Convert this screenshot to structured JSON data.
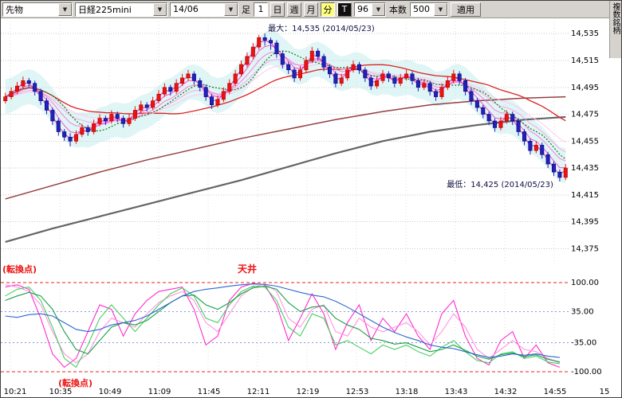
{
  "toolbar": {
    "instrument_value": "先物",
    "symbol_value": "日経225mini",
    "contract_value": "14/06",
    "bar_label": "足",
    "interval_value": "1",
    "period_buttons": [
      {
        "label": "日"
      },
      {
        "label": "週"
      },
      {
        "label": "月"
      },
      {
        "label": "分"
      }
    ],
    "t_button": "T",
    "count_value": "96",
    "bars_label": "本数",
    "bars_value": "500",
    "apply_label": "適用",
    "multi_symbol_label": "複数銘柄"
  },
  "annotations": {
    "max_label": "最大：14,535 (2014/05/23)",
    "min_label": "最低：14,425 (2014/05/23)",
    "turn_top": "(転換点)",
    "ceiling": "天井",
    "turn_bottom": "(転換点)"
  },
  "chart_data": {
    "type": "candlestick",
    "title": "日経225mini 14/06 分足",
    "x_ticks": [
      "10:21",
      "10:35",
      "10:49",
      "11:09",
      "11:45",
      "12:11",
      "12:19",
      "12:53",
      "13:18",
      "13:43",
      "14:32",
      "14:55",
      "15"
    ],
    "colors": {
      "up": "#ee1111",
      "up_border": "#aa0000",
      "down": "#2222bb",
      "down_border": "#000077",
      "ma_short": "#0e7a0e",
      "ma_mid": "#dd2222",
      "ma_long": "#4a4a4a",
      "ma_long2": "#8a2a2a",
      "ribbon": [
        "#ffc2ef",
        "#ff9ae6",
        "#ff6fdb",
        "#ff3fce",
        "#e520b8"
      ],
      "band": "#daf4f4",
      "grid": "#c9c9c9",
      "osc_limit": "#ee2222",
      "osc_inner": "#8899dd",
      "annotation": "#101042"
    },
    "price": {
      "ymin": 14364,
      "ymax": 14544,
      "yticks": [
        {
          "v": 14535,
          "label": "14,535"
        },
        {
          "v": 14515,
          "label": "14,515"
        },
        {
          "v": 14495,
          "label": "14,495"
        },
        {
          "v": 14475,
          "label": "14,475"
        },
        {
          "v": 14455,
          "label": "14,455"
        },
        {
          "v": 14435,
          "label": "14,435"
        },
        {
          "v": 14415,
          "label": "14,415"
        },
        {
          "v": 14395,
          "label": "14,395"
        },
        {
          "v": 14375,
          "label": "14,375"
        }
      ],
      "max_point": {
        "value": 14535,
        "date": "2014/05/23",
        "bar": 44
      },
      "min_point": {
        "value": 14425,
        "date": "2014/05/23",
        "bar": 94
      },
      "ma_long": {
        "indices": [
          0,
          8,
          16,
          24,
          32,
          40,
          48,
          56,
          64,
          72,
          80,
          88,
          95
        ],
        "values": [
          14380,
          14390,
          14399,
          14408,
          14417,
          14426,
          14436,
          14446,
          14455,
          14462,
          14467,
          14471,
          14473
        ]
      },
      "ma_long2": {
        "indices": [
          0,
          8,
          16,
          24,
          32,
          40,
          48,
          56,
          64,
          72,
          80,
          88,
          95
        ],
        "values": [
          14412,
          14422,
          14432,
          14441,
          14449,
          14457,
          14464,
          14471,
          14477,
          14482,
          14485,
          14487,
          14488
        ]
      },
      "candles": [
        [
          14485,
          14491,
          14483,
          14488
        ],
        [
          14488,
          14495,
          14486,
          14492
        ],
        [
          14492,
          14499,
          14490,
          14496
        ],
        [
          14496,
          14503,
          14494,
          14500
        ],
        [
          14500,
          14502,
          14495,
          14498
        ],
        [
          14498,
          14500,
          14489,
          14492
        ],
        [
          14492,
          14494,
          14482,
          14485
        ],
        [
          14485,
          14487,
          14475,
          14478
        ],
        [
          14478,
          14480,
          14467,
          14470
        ],
        [
          14470,
          14472,
          14459,
          14462
        ],
        [
          14462,
          14464,
          14455,
          14458
        ],
        [
          14458,
          14461,
          14451,
          14455
        ],
        [
          14455,
          14463,
          14453,
          14460
        ],
        [
          14460,
          14468,
          14458,
          14465
        ],
        [
          14465,
          14467,
          14459,
          14462
        ],
        [
          14462,
          14471,
          14460,
          14468
        ],
        [
          14468,
          14475,
          14466,
          14472
        ],
        [
          14472,
          14474,
          14467,
          14470
        ],
        [
          14470,
          14478,
          14468,
          14475
        ],
        [
          14475,
          14477,
          14469,
          14472
        ],
        [
          14472,
          14474,
          14465,
          14468
        ],
        [
          14468,
          14475,
          14466,
          14472
        ],
        [
          14472,
          14481,
          14470,
          14478
        ],
        [
          14478,
          14485,
          14476,
          14482
        ],
        [
          14482,
          14484,
          14477,
          14480
        ],
        [
          14480,
          14488,
          14478,
          14485
        ],
        [
          14485,
          14493,
          14483,
          14490
        ],
        [
          14490,
          14498,
          14488,
          14495
        ],
        [
          14495,
          14497,
          14489,
          14492
        ],
        [
          14492,
          14501,
          14490,
          14498
        ],
        [
          14498,
          14505,
          14496,
          14502
        ],
        [
          14502,
          14508,
          14500,
          14505
        ],
        [
          14505,
          14507,
          14497,
          14500
        ],
        [
          14500,
          14502,
          14492,
          14495
        ],
        [
          14495,
          14497,
          14485,
          14488
        ],
        [
          14488,
          14490,
          14479,
          14482
        ],
        [
          14482,
          14489,
          14480,
          14486
        ],
        [
          14486,
          14495,
          14484,
          14492
        ],
        [
          14492,
          14501,
          14490,
          14498
        ],
        [
          14498,
          14508,
          14496,
          14505
        ],
        [
          14505,
          14515,
          14503,
          14512
        ],
        [
          14512,
          14521,
          14510,
          14518
        ],
        [
          14518,
          14528,
          14516,
          14525
        ],
        [
          14525,
          14534,
          14523,
          14532
        ],
        [
          14532,
          14535,
          14526,
          14530
        ],
        [
          14530,
          14532,
          14523,
          14528
        ],
        [
          14528,
          14530,
          14517,
          14520
        ],
        [
          14520,
          14522,
          14509,
          14512
        ],
        [
          14512,
          14514,
          14505,
          14508
        ],
        [
          14508,
          14510,
          14499,
          14502
        ],
        [
          14502,
          14511,
          14500,
          14508
        ],
        [
          14508,
          14518,
          14506,
          14515
        ],
        [
          14515,
          14525,
          14513,
          14522
        ],
        [
          14522,
          14524,
          14515,
          14518
        ],
        [
          14518,
          14520,
          14507,
          14510
        ],
        [
          14510,
          14512,
          14502,
          14505
        ],
        [
          14505,
          14507,
          14495,
          14498
        ],
        [
          14498,
          14505,
          14496,
          14502
        ],
        [
          14502,
          14511,
          14500,
          14508
        ],
        [
          14508,
          14515,
          14506,
          14512
        ],
        [
          14512,
          14514,
          14505,
          14508
        ],
        [
          14508,
          14510,
          14499,
          14502
        ],
        [
          14502,
          14504,
          14493,
          14496
        ],
        [
          14496,
          14503,
          14494,
          14500
        ],
        [
          14500,
          14508,
          14498,
          14505
        ],
        [
          14505,
          14507,
          14499,
          14502
        ],
        [
          14502,
          14504,
          14495,
          14498
        ],
        [
          14498,
          14505,
          14496,
          14502
        ],
        [
          14502,
          14508,
          14500,
          14505
        ],
        [
          14505,
          14507,
          14497,
          14500
        ],
        [
          14500,
          14502,
          14492,
          14495
        ],
        [
          14495,
          14501,
          14493,
          14498
        ],
        [
          14498,
          14500,
          14489,
          14492
        ],
        [
          14492,
          14494,
          14485,
          14488
        ],
        [
          14488,
          14498,
          14486,
          14495
        ],
        [
          14495,
          14503,
          14493,
          14500
        ],
        [
          14500,
          14508,
          14498,
          14505
        ],
        [
          14505,
          14507,
          14497,
          14500
        ],
        [
          14500,
          14502,
          14489,
          14492
        ],
        [
          14492,
          14494,
          14482,
          14485
        ],
        [
          14485,
          14487,
          14477,
          14480
        ],
        [
          14480,
          14482,
          14472,
          14475
        ],
        [
          14475,
          14477,
          14467,
          14470
        ],
        [
          14470,
          14472,
          14462,
          14465
        ],
        [
          14465,
          14473,
          14463,
          14470
        ],
        [
          14470,
          14478,
          14468,
          14475
        ],
        [
          14475,
          14477,
          14467,
          14470
        ],
        [
          14470,
          14472,
          14459,
          14462
        ],
        [
          14462,
          14464,
          14452,
          14455
        ],
        [
          14455,
          14457,
          14445,
          14448
        ],
        [
          14448,
          14455,
          14446,
          14452
        ],
        [
          14452,
          14454,
          14442,
          14445
        ],
        [
          14445,
          14447,
          14435,
          14438
        ],
        [
          14438,
          14440,
          14429,
          14432
        ],
        [
          14432,
          14434,
          14425,
          14428
        ],
        [
          14428,
          14438,
          14426,
          14435
        ]
      ]
    },
    "oscillator": {
      "sample_step": 2,
      "yticks": [
        {
          "v": 100,
          "label": "100.00"
        },
        {
          "v": 35,
          "label": "35.00"
        },
        {
          "v": -35,
          "label": "-35.00"
        },
        {
          "v": -100,
          "label": "-100.00"
        }
      ],
      "series": [
        {
          "name": "rci-short",
          "color": "#ff22cc",
          "values": [
            90,
            95,
            85,
            20,
            -60,
            -90,
            -70,
            -10,
            50,
            40,
            -20,
            30,
            60,
            80,
            85,
            90,
            40,
            -40,
            -20,
            60,
            90,
            98,
            95,
            50,
            -30,
            20,
            75,
            30,
            -50,
            10,
            50,
            -30,
            20,
            -10,
            30,
            -20,
            -50,
            30,
            60,
            -20,
            -70,
            -85,
            -30,
            -10,
            -70,
            -40,
            -80,
            -90
          ]
        },
        {
          "name": "rci-mid",
          "color": "#ff8fe0",
          "values": [
            95,
            90,
            80,
            50,
            -10,
            -60,
            -80,
            -60,
            -10,
            20,
            10,
            0,
            30,
            55,
            70,
            80,
            60,
            10,
            -10,
            30,
            70,
            90,
            97,
            80,
            20,
            0,
            40,
            50,
            -10,
            -20,
            20,
            0,
            -10,
            0,
            10,
            -10,
            -40,
            -10,
            30,
            0,
            -50,
            -70,
            -50,
            -30,
            -50,
            -55,
            -70,
            -80
          ]
        },
        {
          "name": "rci-fast-green",
          "color": "#3ecc5a",
          "values": [
            70,
            85,
            90,
            60,
            0,
            -70,
            -90,
            -40,
            20,
            50,
            20,
            -10,
            20,
            50,
            75,
            88,
            70,
            20,
            10,
            50,
            80,
            92,
            90,
            60,
            0,
            -20,
            30,
            20,
            -40,
            -30,
            -45,
            -60,
            -40,
            -50,
            -40,
            -55,
            -65,
            -45,
            -30,
            -55,
            -75,
            -80,
            -60,
            -55,
            -70,
            -65,
            -78,
            -82
          ]
        },
        {
          "name": "rci-slow-green",
          "color": "#0f9a3c",
          "values": [
            60,
            70,
            78,
            70,
            40,
            -10,
            -50,
            -60,
            -30,
            0,
            10,
            5,
            15,
            35,
            55,
            70,
            72,
            50,
            40,
            55,
            75,
            88,
            92,
            85,
            55,
            35,
            45,
            48,
            20,
            5,
            -5,
            -25,
            -30,
            -38,
            -35,
            -45,
            -55,
            -50,
            -40,
            -52,
            -65,
            -72,
            -62,
            -58,
            -66,
            -62,
            -72,
            -78
          ]
        },
        {
          "name": "rci-blue",
          "color": "#1f5fd0",
          "values": [
            25,
            22,
            28,
            30,
            25,
            10,
            -5,
            -10,
            -5,
            5,
            10,
            15,
            25,
            40,
            55,
            70,
            80,
            85,
            88,
            92,
            95,
            97,
            96,
            92,
            85,
            78,
            72,
            68,
            58,
            45,
            30,
            15,
            0,
            -12,
            -22,
            -30,
            -40,
            -45,
            -48,
            -55,
            -62,
            -68,
            -65,
            -60,
            -63,
            -60,
            -65,
            -68
          ]
        }
      ]
    }
  }
}
